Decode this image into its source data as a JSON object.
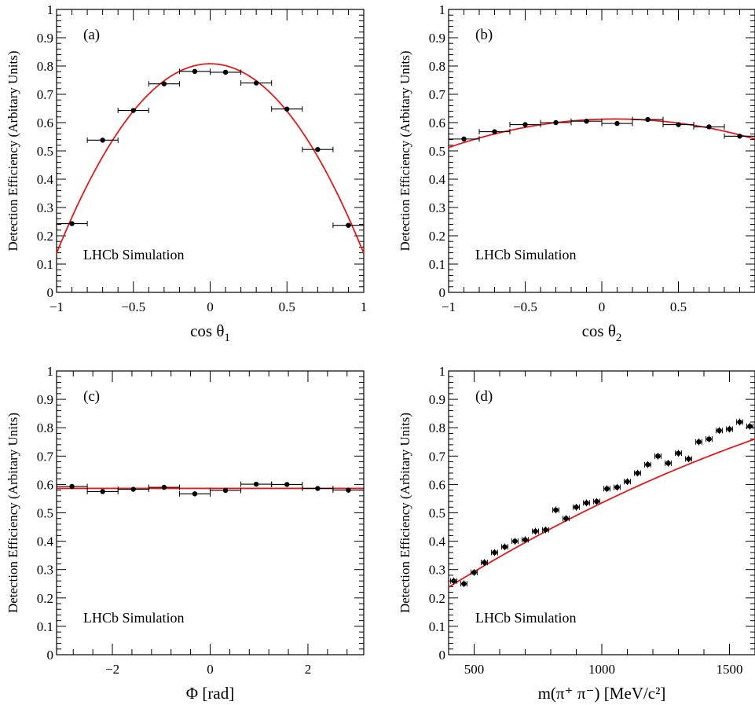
{
  "chart_data": [
    {
      "type": "scatter",
      "panel_label": "(a)",
      "annotation": "LHCb Simulation",
      "xlabel": "cos θ",
      "xlabel_sub": "1",
      "ylabel": "Detection Efficiency (Arbitary Units)",
      "xlim": [
        -1,
        1
      ],
      "ylim": [
        0,
        1
      ],
      "xticks": [
        -1,
        -0.5,
        0,
        0.5,
        1
      ],
      "xtick_labels": [
        "−1",
        "−0.5",
        "0",
        "0.5",
        "1"
      ],
      "yticks": [
        0,
        0.1,
        0.2,
        0.3,
        0.4,
        0.5,
        0.6,
        0.7,
        0.8,
        0.9,
        1
      ],
      "ytick_labels": [
        "0",
        "0.1",
        "0.2",
        "0.3",
        "0.4",
        "0.5",
        "0.6",
        "0.7",
        "0.8",
        "0.9",
        "1"
      ],
      "x": [
        -0.9,
        -0.7,
        -0.5,
        -0.3,
        -0.1,
        0.1,
        0.3,
        0.5,
        0.7,
        0.9
      ],
      "y": [
        0.243,
        0.538,
        0.643,
        0.737,
        0.781,
        0.778,
        0.74,
        0.648,
        0.505,
        0.237
      ],
      "xerr": 0.1,
      "fit": {
        "form": "polynomial",
        "coeffs": [
          0.808,
          0,
          -0.67
        ],
        "color": "#e31a1c"
      },
      "point_color": "#000000"
    },
    {
      "type": "scatter",
      "panel_label": "(b)",
      "annotation": "LHCb Simulation",
      "xlabel": "cos θ",
      "xlabel_sub": "2",
      "ylabel": "Detection Efficiency (Arbitary Units)",
      "xlim": [
        -1,
        1
      ],
      "ylim": [
        0,
        1
      ],
      "xticks": [
        -1,
        -0.5,
        0,
        0.5
      ],
      "xtick_labels": [
        "−1",
        "−0.5",
        "0",
        "0.5"
      ],
      "yticks": [
        0,
        0.1,
        0.2,
        0.3,
        0.4,
        0.5,
        0.6,
        0.7,
        0.8,
        0.9,
        1
      ],
      "ytick_labels": [
        "0",
        "0.1",
        "0.2",
        "0.3",
        "0.4",
        "0.5",
        "0.6",
        "0.7",
        "0.8",
        "0.9",
        "1"
      ],
      "x": [
        -0.9,
        -0.7,
        -0.5,
        -0.3,
        -0.1,
        0.1,
        0.3,
        0.5,
        0.7,
        0.9
      ],
      "y": [
        0.542,
        0.568,
        0.593,
        0.6,
        0.605,
        0.597,
        0.611,
        0.593,
        0.585,
        0.552
      ],
      "xerr": 0.1,
      "fit": {
        "form": "polynomial",
        "coeffs": [
          0.612,
          0.015,
          -0.085
        ],
        "color": "#e31a1c"
      },
      "point_color": "#000000"
    },
    {
      "type": "scatter",
      "panel_label": "(c)",
      "annotation": "LHCb Simulation",
      "xlabel": "Φ [rad]",
      "xlabel_sub": "",
      "ylabel": "Detection Efficiency (Arbitary Units)",
      "xlim": [
        -3.1416,
        3.1416
      ],
      "ylim": [
        0,
        1
      ],
      "xticks": [
        -2,
        0,
        2
      ],
      "xtick_labels": [
        "−2",
        "0",
        "2"
      ],
      "yticks": [
        0,
        0.1,
        0.2,
        0.3,
        0.4,
        0.5,
        0.6,
        0.7,
        0.8,
        0.9,
        1
      ],
      "ytick_labels": [
        "0",
        "0.1",
        "0.2",
        "0.3",
        "0.4",
        "0.5",
        "0.6",
        "0.7",
        "0.8",
        "0.9",
        "1"
      ],
      "x": [
        -2.827,
        -2.199,
        -1.571,
        -0.942,
        -0.314,
        0.314,
        0.942,
        1.571,
        2.199,
        2.827
      ],
      "y": [
        0.593,
        0.575,
        0.583,
        0.59,
        0.567,
        0.579,
        0.601,
        0.6,
        0.586,
        0.58
      ],
      "xerr": 0.314,
      "fit": {
        "form": "polynomial",
        "coeffs": [
          0.586
        ],
        "color": "#e31a1c"
      },
      "point_color": "#000000"
    },
    {
      "type": "scatter",
      "panel_label": "(d)",
      "annotation": "LHCb Simulation",
      "xlabel": "m(π⁺ π⁻) [MeV/c²]",
      "xlabel_sub": "",
      "ylabel": "Detection Efficiency (Arbitary Units)",
      "xlim": [
        400,
        1600
      ],
      "ylim": [
        0,
        1
      ],
      "xticks": [
        500,
        1000,
        1500
      ],
      "xtick_labels": [
        "500",
        "1000",
        "1500"
      ],
      "yticks": [
        0,
        0.1,
        0.2,
        0.3,
        0.4,
        0.5,
        0.6,
        0.7,
        0.8,
        0.9,
        1
      ],
      "ytick_labels": [
        "0",
        "0.1",
        "0.2",
        "0.3",
        "0.4",
        "0.5",
        "0.6",
        "0.7",
        "0.8",
        "0.9",
        "1"
      ],
      "x": [
        420,
        460,
        500,
        540,
        580,
        620,
        660,
        700,
        740,
        780,
        820,
        860,
        900,
        940,
        980,
        1020,
        1060,
        1100,
        1140,
        1180,
        1220,
        1260,
        1300,
        1340,
        1380,
        1420,
        1460,
        1500,
        1540,
        1580
      ],
      "y": [
        0.26,
        0.25,
        0.29,
        0.325,
        0.36,
        0.38,
        0.4,
        0.405,
        0.435,
        0.44,
        0.51,
        0.48,
        0.52,
        0.535,
        0.54,
        0.585,
        0.59,
        0.61,
        0.64,
        0.67,
        0.7,
        0.675,
        0.71,
        0.69,
        0.75,
        0.76,
        0.79,
        0.795,
        0.82,
        0.805
      ],
      "xerr": 12,
      "yerr": 0.012,
      "fit": {
        "form": "polynomial",
        "coeffs": [
          0.0,
          0.000635,
          -1e-07
        ],
        "color": "#e31a1c"
      },
      "point_color": "#000000"
    }
  ]
}
